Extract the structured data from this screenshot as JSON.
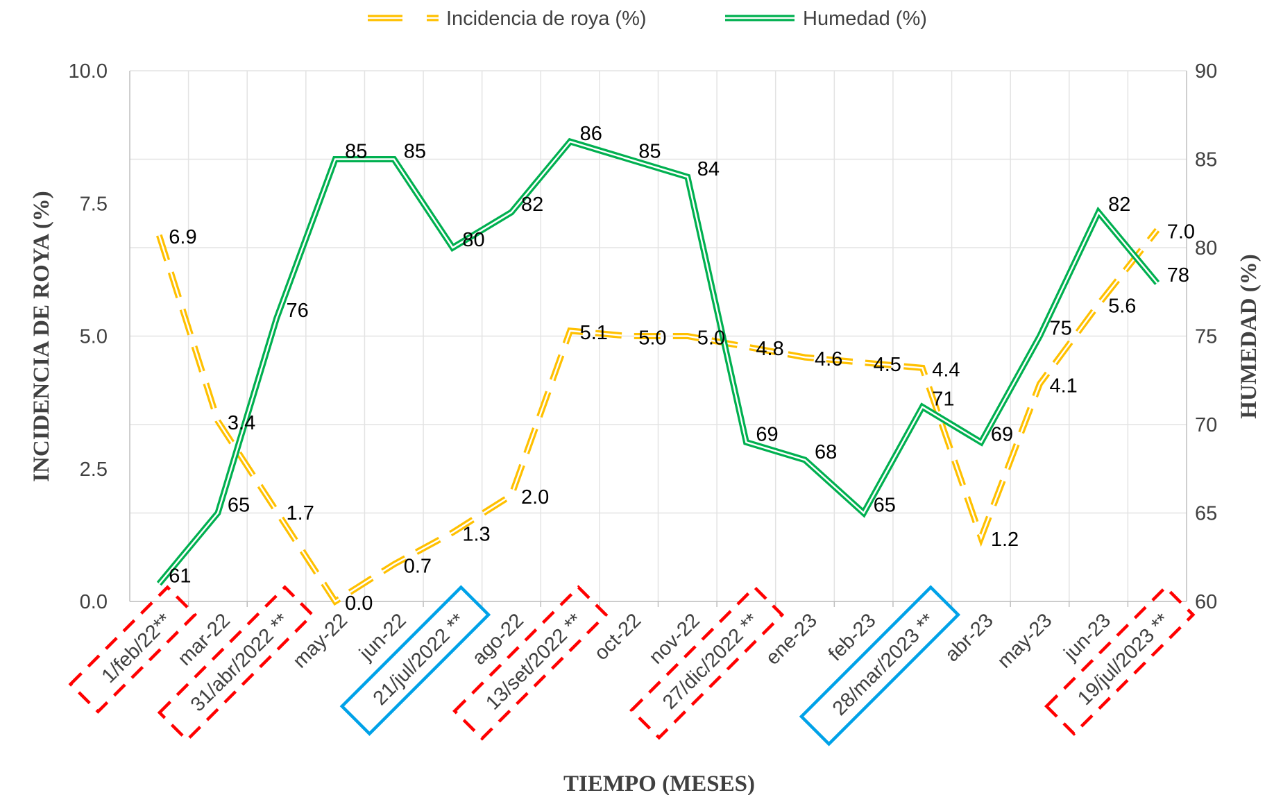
{
  "chart_data": {
    "type": "line",
    "categories": [
      "1/feb/22**",
      "mar-22",
      "31/abr/2022 **",
      "may-22",
      "jun-22",
      "21/jul/2022 **",
      "ago-22",
      "13/set/2022 **",
      "oct-22",
      "nov-22",
      "27/dic/2022 **",
      "ene-23",
      "feb-23",
      "28/mar/2023 **",
      "abr-23",
      "may-23",
      "jun-23",
      "19/jul/2023 **"
    ],
    "category_highlight": [
      "red-dashed",
      "none",
      "red-dashed",
      "none",
      "none",
      "blue",
      "none",
      "red-dashed",
      "none",
      "none",
      "red-dashed",
      "none",
      "none",
      "blue",
      "none",
      "none",
      "none",
      "red-dashed"
    ],
    "series": [
      {
        "name": "Incidencia de roya (%)",
        "axis": "left",
        "color": "#FFC000",
        "style": "double-dashed",
        "values": [
          6.9,
          3.4,
          1.7,
          0.0,
          0.7,
          1.3,
          2.0,
          5.1,
          5.0,
          5.0,
          4.8,
          4.6,
          4.5,
          4.4,
          1.2,
          4.1,
          5.6,
          7.0
        ],
        "labels": [
          "6.9",
          "3.4",
          "1.7",
          "0.0",
          "0.7",
          "1.3",
          "2.0",
          "5.1",
          "5.0",
          "5.0",
          "4.8",
          "4.6",
          "4.5",
          "4.4",
          "1.2",
          "4.1",
          "5.6",
          "7.0"
        ]
      },
      {
        "name": "Humedad (%)",
        "axis": "right",
        "color": "#00B050",
        "style": "double-solid",
        "values": [
          61,
          65,
          76,
          85,
          85,
          80,
          82,
          86,
          85,
          84,
          69,
          68,
          65,
          71,
          69,
          75,
          82,
          78
        ],
        "labels": [
          "61",
          "65",
          "76",
          "85",
          "85",
          "80",
          "82",
          "86",
          "85",
          "84",
          "69",
          "68",
          "65",
          "71",
          "69",
          "75",
          "82",
          "78"
        ]
      }
    ],
    "xlabel": "TIEMPO (MESES)",
    "ylabel": "INCIDENCIA DE ROYA (%)",
    "y2label": "HUMEDAD (%)",
    "ylim": [
      0,
      10
    ],
    "yticks": [
      "0.0",
      "2.5",
      "5.0",
      "7.5",
      "10.0"
    ],
    "y2lim": [
      60,
      90
    ],
    "y2ticks": [
      "60",
      "65",
      "70",
      "75",
      "80",
      "85",
      "90"
    ],
    "grid": true,
    "legend": "top-center",
    "highlight_colors": {
      "red": "#FF0000",
      "blue": "#00A2E8"
    }
  }
}
